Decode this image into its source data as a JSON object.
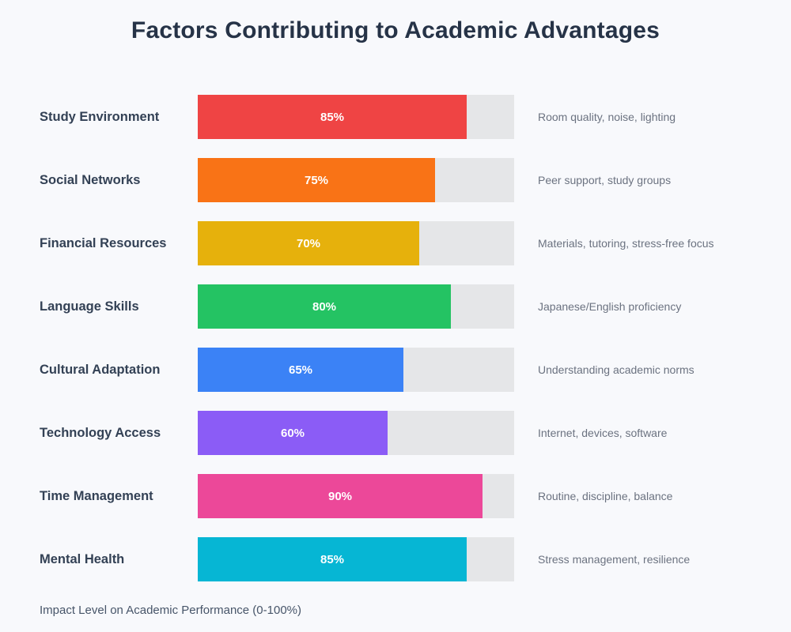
{
  "chart_data": {
    "type": "bar",
    "orientation": "horizontal",
    "title": "Factors Contributing to Academic Advantages",
    "xlabel": "Impact Level on Academic Performance (0-100%)",
    "xlim": [
      0,
      100
    ],
    "grid": false,
    "legend": "none",
    "track_color": "#e5e6e8",
    "background_color": "#f8f9fc",
    "categories": [
      "Study Environment",
      "Social Networks",
      "Financial Resources",
      "Language Skills",
      "Cultural Adaptation",
      "Technology Access",
      "Time Management",
      "Mental Health"
    ],
    "values": [
      85,
      75,
      70,
      80,
      65,
      60,
      90,
      85
    ],
    "rows": [
      {
        "label": "Study Environment",
        "value": 85,
        "value_label": "85%",
        "color": "#ef4444",
        "description": "Room quality, noise, lighting"
      },
      {
        "label": "Social Networks",
        "value": 75,
        "value_label": "75%",
        "color": "#f97316",
        "description": "Peer support, study groups"
      },
      {
        "label": "Financial Resources",
        "value": 70,
        "value_label": "70%",
        "color": "#e6b10c",
        "description": "Materials, tutoring, stress-free focus"
      },
      {
        "label": "Language Skills",
        "value": 80,
        "value_label": "80%",
        "color": "#24c363",
        "description": "Japanese/English proficiency"
      },
      {
        "label": "Cultural Adaptation",
        "value": 65,
        "value_label": "65%",
        "color": "#3b82f6",
        "description": "Understanding academic norms"
      },
      {
        "label": "Technology Access",
        "value": 60,
        "value_label": "60%",
        "color": "#8b5cf6",
        "description": "Internet, devices, software"
      },
      {
        "label": "Time Management",
        "value": 90,
        "value_label": "90%",
        "color": "#ec4899",
        "description": "Routine, discipline, balance"
      },
      {
        "label": "Mental Health",
        "value": 85,
        "value_label": "85%",
        "color": "#06b6d4",
        "description": "Stress management, resilience"
      }
    ]
  }
}
